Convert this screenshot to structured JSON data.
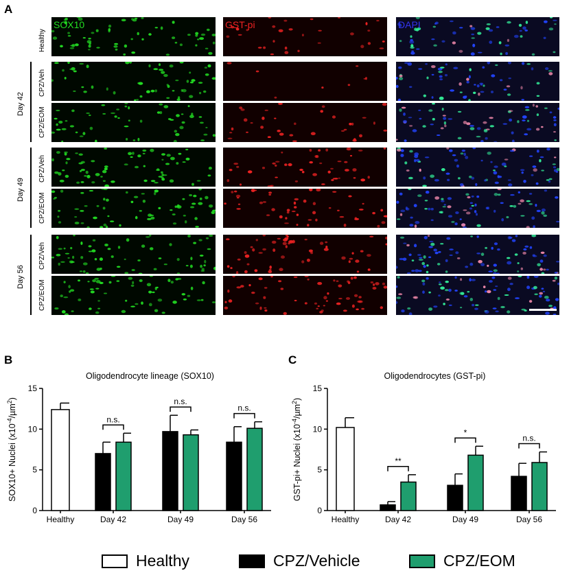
{
  "panels": {
    "a": "A",
    "b": "B",
    "c": "C"
  },
  "channels": [
    {
      "label": "SOX10",
      "color": "#22dd22"
    },
    {
      "label": "GST-pi",
      "color": "#ee2222"
    },
    {
      "label": "DAPI",
      "color": "#3333ee"
    }
  ],
  "rows": [
    {
      "label": "Healthy"
    },
    {
      "label": "CPZ/Veh"
    },
    {
      "label": "CPZ/EOM"
    },
    {
      "label": "CPZ/Veh"
    },
    {
      "label": "CPZ/EOM"
    },
    {
      "label": "CPZ/Veh"
    },
    {
      "label": "CPZ/EOM"
    }
  ],
  "days": [
    "Day 42",
    "Day 49",
    "Day 56"
  ],
  "colors": {
    "healthy": "#ffffff",
    "vehicle": "#000000",
    "eom": "#1f9e6e"
  },
  "legend": {
    "healthy": "Healthy",
    "vehicle": "CPZ/Vehicle",
    "eom": "CPZ/EOM"
  },
  "chart_data": [
    {
      "type": "bar",
      "title": "Oligodendrocyte lineage (SOX10)",
      "ylabel": "SOX10+ Nuclei (x10",
      "ylabel_sup": "-4",
      "ylabel_mid": "/µm",
      "ylabel_sup2": "2",
      "ylabel_end": ")",
      "ylim": [
        0,
        15
      ],
      "yticks": [
        "0",
        "5",
        "10",
        "15"
      ],
      "categories": [
        "Healthy",
        "Day 42",
        "Day 49",
        "Day 56"
      ],
      "series": [
        {
          "name": "Healthy",
          "values": [
            12.4,
            null,
            null,
            null
          ],
          "errors": [
            0.8,
            null,
            null,
            null
          ]
        },
        {
          "name": "CPZ/Vehicle",
          "values": [
            null,
            7.0,
            9.7,
            8.4
          ],
          "errors": [
            null,
            1.4,
            2.0,
            1.9
          ]
        },
        {
          "name": "CPZ/EOM",
          "values": [
            null,
            8.4,
            9.3,
            10.1
          ],
          "errors": [
            null,
            1.1,
            0.6,
            0.8
          ]
        }
      ],
      "significance": [
        "n.s.",
        "n.s.",
        "n.s."
      ]
    },
    {
      "type": "bar",
      "title": "Oligodendrocytes (GST-pi)",
      "ylabel": "GST-pi+ Nuclei (x10",
      "ylabel_sup": "-4",
      "ylabel_mid": "/µm",
      "ylabel_sup2": "2",
      "ylabel_end": ")",
      "ylim": [
        0,
        15
      ],
      "yticks": [
        "0",
        "5",
        "10",
        "15"
      ],
      "categories": [
        "Healthy",
        "Day 42",
        "Day 49",
        "Day 56"
      ],
      "series": [
        {
          "name": "Healthy",
          "values": [
            10.2,
            null,
            null,
            null
          ],
          "errors": [
            1.2,
            null,
            null,
            null
          ]
        },
        {
          "name": "CPZ/Vehicle",
          "values": [
            null,
            0.7,
            3.1,
            4.2
          ],
          "errors": [
            null,
            0.4,
            1.4,
            1.6
          ]
        },
        {
          "name": "CPZ/EOM",
          "values": [
            null,
            3.5,
            6.8,
            5.9
          ],
          "errors": [
            null,
            0.9,
            1.1,
            1.3
          ]
        }
      ],
      "significance": [
        "**",
        "*",
        "n.s."
      ]
    }
  ]
}
